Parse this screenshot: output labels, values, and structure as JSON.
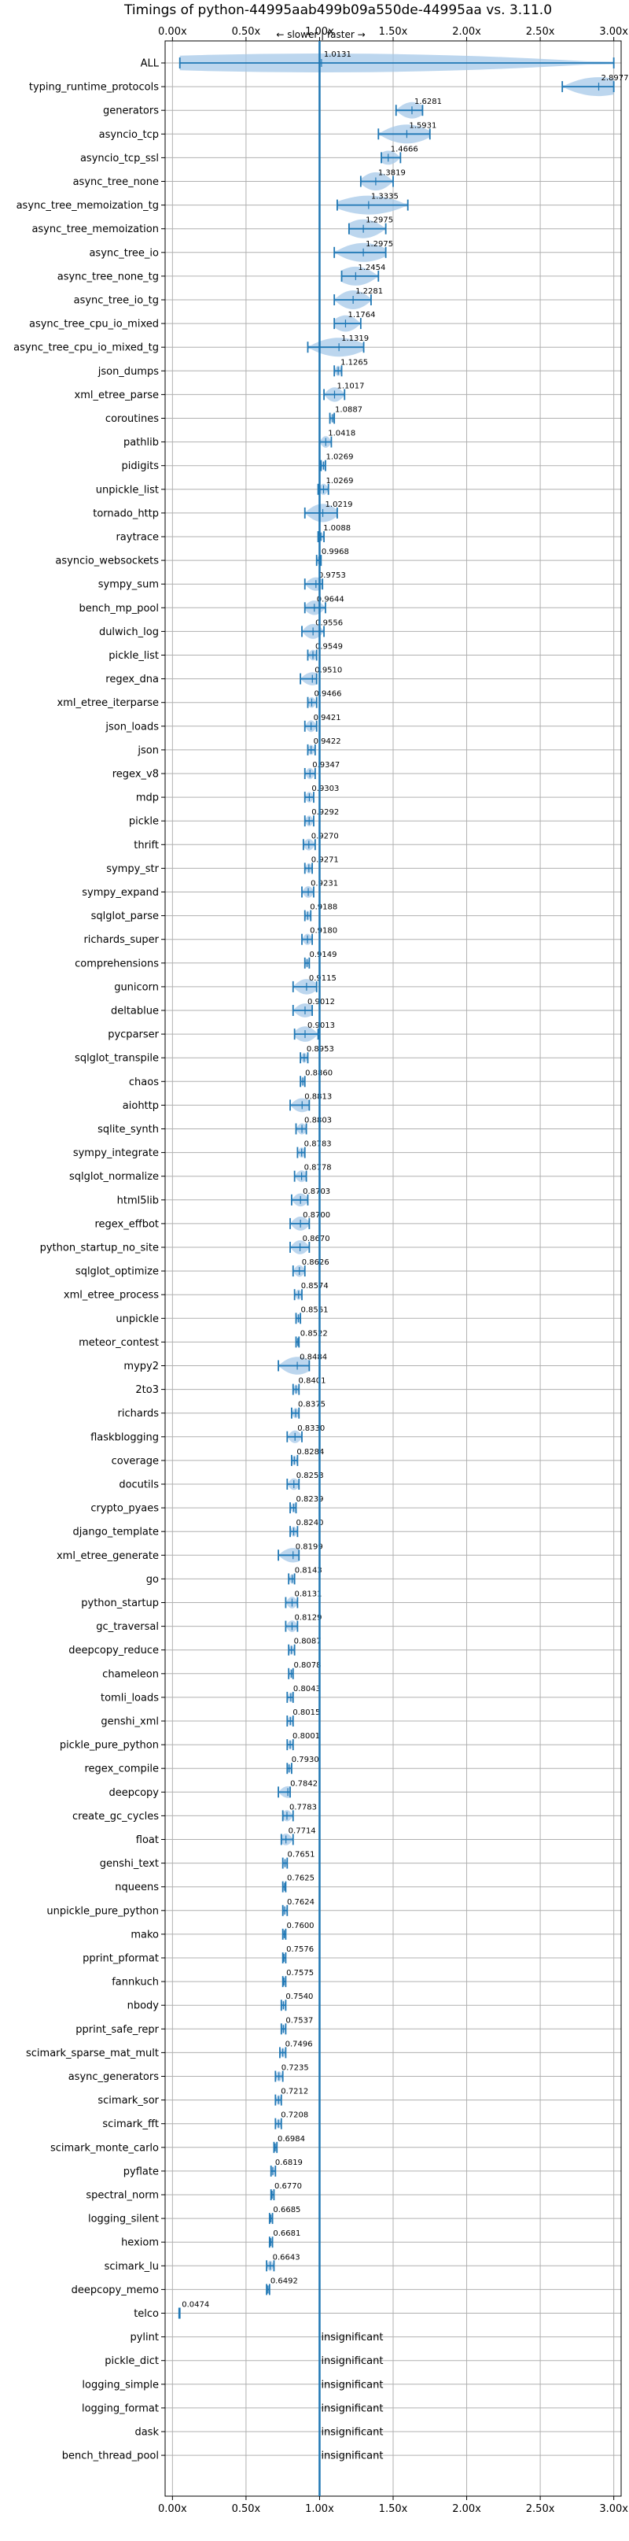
{
  "chart_data": {
    "type": "violin",
    "title": "Timings of python-44995aab499b09a550de-44995aa vs. 3.11.0",
    "direction_note": "← slower | faster →",
    "xlim": [
      -0.05,
      3.05
    ],
    "x_ticks": [
      0.0,
      0.5,
      1.0,
      1.5,
      2.0,
      2.5,
      3.0
    ],
    "x_tick_labels": [
      "0.00x",
      "0.50x",
      "1.00x",
      "1.50x",
      "2.00x",
      "2.50x",
      "3.00x"
    ],
    "reference_line": 1.0,
    "grid": true,
    "insignificant_label": "insignificant",
    "benchmarks": [
      {
        "name": "ALL",
        "value": 1.0131,
        "label": "1.0131",
        "lo": 0.05,
        "hi": 3.0,
        "significant": true
      },
      {
        "name": "typing_runtime_protocols",
        "value": 2.8977,
        "label": "2.8977",
        "lo": 2.65,
        "hi": 3.0,
        "significant": true
      },
      {
        "name": "generators",
        "value": 1.6281,
        "label": "1.6281",
        "lo": 1.52,
        "hi": 1.7,
        "significant": true
      },
      {
        "name": "asyncio_tcp",
        "value": 1.5931,
        "label": "1.5931",
        "lo": 1.4,
        "hi": 1.75,
        "significant": true
      },
      {
        "name": "asyncio_tcp_ssl",
        "value": 1.4666,
        "label": "1.4666",
        "lo": 1.42,
        "hi": 1.55,
        "significant": true
      },
      {
        "name": "async_tree_none",
        "value": 1.3819,
        "label": "1.3819",
        "lo": 1.28,
        "hi": 1.5,
        "significant": true
      },
      {
        "name": "async_tree_memoization_tg",
        "value": 1.3335,
        "label": "1.3335",
        "lo": 1.12,
        "hi": 1.6,
        "significant": true
      },
      {
        "name": "async_tree_memoization",
        "value": 1.2975,
        "label": "1.2975",
        "lo": 1.2,
        "hi": 1.45,
        "significant": true
      },
      {
        "name": "async_tree_io",
        "value": 1.2975,
        "label": "1.2975",
        "lo": 1.1,
        "hi": 1.45,
        "significant": true
      },
      {
        "name": "async_tree_none_tg",
        "value": 1.2454,
        "label": "1.2454",
        "lo": 1.15,
        "hi": 1.4,
        "significant": true
      },
      {
        "name": "async_tree_io_tg",
        "value": 1.2281,
        "label": "1.2281",
        "lo": 1.1,
        "hi": 1.35,
        "significant": true
      },
      {
        "name": "async_tree_cpu_io_mixed",
        "value": 1.1764,
        "label": "1.1764",
        "lo": 1.1,
        "hi": 1.28,
        "significant": true
      },
      {
        "name": "async_tree_cpu_io_mixed_tg",
        "value": 1.1319,
        "label": "1.1319",
        "lo": 0.92,
        "hi": 1.3,
        "significant": true
      },
      {
        "name": "json_dumps",
        "value": 1.1265,
        "label": "1.1265",
        "lo": 1.1,
        "hi": 1.15,
        "significant": true
      },
      {
        "name": "xml_etree_parse",
        "value": 1.1017,
        "label": "1.1017",
        "lo": 1.03,
        "hi": 1.17,
        "significant": true
      },
      {
        "name": "coroutines",
        "value": 1.0887,
        "label": "1.0887",
        "lo": 1.07,
        "hi": 1.1,
        "significant": true
      },
      {
        "name": "pathlib",
        "value": 1.0418,
        "label": "1.0418",
        "lo": 1.0,
        "hi": 1.08,
        "significant": true
      },
      {
        "name": "pidigits",
        "value": 1.0269,
        "label": "1.0269",
        "lo": 1.01,
        "hi": 1.04,
        "significant": true
      },
      {
        "name": "unpickle_list",
        "value": 1.0269,
        "label": "1.0269",
        "lo": 0.99,
        "hi": 1.06,
        "significant": true
      },
      {
        "name": "tornado_http",
        "value": 1.0219,
        "label": "1.0219",
        "lo": 0.9,
        "hi": 1.12,
        "significant": true
      },
      {
        "name": "raytrace",
        "value": 1.0088,
        "label": "1.0088",
        "lo": 0.99,
        "hi": 1.03,
        "significant": true
      },
      {
        "name": "asyncio_websockets",
        "value": 0.9968,
        "label": "0.9968",
        "lo": 0.98,
        "hi": 1.01,
        "significant": true
      },
      {
        "name": "sympy_sum",
        "value": 0.9753,
        "label": "0.9753",
        "lo": 0.9,
        "hi": 1.02,
        "significant": true
      },
      {
        "name": "bench_mp_pool",
        "value": 0.9644,
        "label": "0.9644",
        "lo": 0.9,
        "hi": 1.04,
        "significant": true
      },
      {
        "name": "dulwich_log",
        "value": 0.9556,
        "label": "0.9556",
        "lo": 0.88,
        "hi": 1.03,
        "significant": true
      },
      {
        "name": "pickle_list",
        "value": 0.9549,
        "label": "0.9549",
        "lo": 0.92,
        "hi": 0.98,
        "significant": true
      },
      {
        "name": "regex_dna",
        "value": 0.951,
        "label": "0.9510",
        "lo": 0.87,
        "hi": 0.98,
        "significant": true
      },
      {
        "name": "xml_etree_iterparse",
        "value": 0.9466,
        "label": "0.9466",
        "lo": 0.92,
        "hi": 0.98,
        "significant": true
      },
      {
        "name": "json_loads",
        "value": 0.9421,
        "label": "0.9421",
        "lo": 0.9,
        "hi": 0.98,
        "significant": true
      },
      {
        "name": "json",
        "value": 0.9422,
        "label": "0.9422",
        "lo": 0.92,
        "hi": 0.97,
        "significant": true
      },
      {
        "name": "regex_v8",
        "value": 0.9347,
        "label": "0.9347",
        "lo": 0.9,
        "hi": 0.97,
        "significant": true
      },
      {
        "name": "mdp",
        "value": 0.9303,
        "label": "0.9303",
        "lo": 0.9,
        "hi": 0.96,
        "significant": true
      },
      {
        "name": "pickle",
        "value": 0.9292,
        "label": "0.9292",
        "lo": 0.9,
        "hi": 0.96,
        "significant": true
      },
      {
        "name": "thrift",
        "value": 0.927,
        "label": "0.9270",
        "lo": 0.89,
        "hi": 0.97,
        "significant": true
      },
      {
        "name": "sympy_str",
        "value": 0.9271,
        "label": "0.9271",
        "lo": 0.9,
        "hi": 0.95,
        "significant": true
      },
      {
        "name": "sympy_expand",
        "value": 0.9231,
        "label": "0.9231",
        "lo": 0.88,
        "hi": 0.96,
        "significant": true
      },
      {
        "name": "sqlglot_parse",
        "value": 0.9188,
        "label": "0.9188",
        "lo": 0.9,
        "hi": 0.94,
        "significant": true
      },
      {
        "name": "richards_super",
        "value": 0.918,
        "label": "0.9180",
        "lo": 0.88,
        "hi": 0.95,
        "significant": true
      },
      {
        "name": "comprehensions",
        "value": 0.9149,
        "label": "0.9149",
        "lo": 0.9,
        "hi": 0.93,
        "significant": true
      },
      {
        "name": "gunicorn",
        "value": 0.9115,
        "label": "0.9115",
        "lo": 0.82,
        "hi": 0.98,
        "significant": true
      },
      {
        "name": "deltablue",
        "value": 0.9012,
        "label": "0.9012",
        "lo": 0.82,
        "hi": 0.95,
        "significant": true
      },
      {
        "name": "pycparser",
        "value": 0.9013,
        "label": "0.9013",
        "lo": 0.83,
        "hi": 0.99,
        "significant": true
      },
      {
        "name": "sqlglot_transpile",
        "value": 0.8953,
        "label": "0.8953",
        "lo": 0.87,
        "hi": 0.92,
        "significant": true
      },
      {
        "name": "chaos",
        "value": 0.886,
        "label": "0.8860",
        "lo": 0.87,
        "hi": 0.9,
        "significant": true
      },
      {
        "name": "aiohttp",
        "value": 0.8813,
        "label": "0.8813",
        "lo": 0.8,
        "hi": 0.93,
        "significant": true
      },
      {
        "name": "sqlite_synth",
        "value": 0.8803,
        "label": "0.8803",
        "lo": 0.84,
        "hi": 0.91,
        "significant": true
      },
      {
        "name": "sympy_integrate",
        "value": 0.8783,
        "label": "0.8783",
        "lo": 0.85,
        "hi": 0.9,
        "significant": true
      },
      {
        "name": "sqlglot_normalize",
        "value": 0.8778,
        "label": "0.8778",
        "lo": 0.83,
        "hi": 0.91,
        "significant": true
      },
      {
        "name": "html5lib",
        "value": 0.8703,
        "label": "0.8703",
        "lo": 0.81,
        "hi": 0.92,
        "significant": true
      },
      {
        "name": "regex_effbot",
        "value": 0.87,
        "label": "0.8700",
        "lo": 0.8,
        "hi": 0.93,
        "significant": true
      },
      {
        "name": "python_startup_no_site",
        "value": 0.867,
        "label": "0.8670",
        "lo": 0.8,
        "hi": 0.93,
        "significant": true
      },
      {
        "name": "sqlglot_optimize",
        "value": 0.8626,
        "label": "0.8626",
        "lo": 0.82,
        "hi": 0.9,
        "significant": true
      },
      {
        "name": "xml_etree_process",
        "value": 0.8574,
        "label": "0.8574",
        "lo": 0.83,
        "hi": 0.88,
        "significant": true
      },
      {
        "name": "unpickle",
        "value": 0.8561,
        "label": "0.8561",
        "lo": 0.84,
        "hi": 0.87,
        "significant": true
      },
      {
        "name": "meteor_contest",
        "value": 0.8522,
        "label": "0.8522",
        "lo": 0.84,
        "hi": 0.86,
        "significant": true
      },
      {
        "name": "mypy2",
        "value": 0.8484,
        "label": "0.8484",
        "lo": 0.72,
        "hi": 0.93,
        "significant": true
      },
      {
        "name": "2to3",
        "value": 0.8401,
        "label": "0.8401",
        "lo": 0.82,
        "hi": 0.86,
        "significant": true
      },
      {
        "name": "richards",
        "value": 0.8375,
        "label": "0.8375",
        "lo": 0.81,
        "hi": 0.86,
        "significant": true
      },
      {
        "name": "flaskblogging",
        "value": 0.833,
        "label": "0.8330",
        "lo": 0.78,
        "hi": 0.88,
        "significant": true
      },
      {
        "name": "coverage",
        "value": 0.8284,
        "label": "0.8284",
        "lo": 0.81,
        "hi": 0.85,
        "significant": true
      },
      {
        "name": "docutils",
        "value": 0.8253,
        "label": "0.8253",
        "lo": 0.78,
        "hi": 0.86,
        "significant": true
      },
      {
        "name": "crypto_pyaes",
        "value": 0.8239,
        "label": "0.8239",
        "lo": 0.8,
        "hi": 0.84,
        "significant": true
      },
      {
        "name": "django_template",
        "value": 0.824,
        "label": "0.8240",
        "lo": 0.8,
        "hi": 0.85,
        "significant": true
      },
      {
        "name": "xml_etree_generate",
        "value": 0.8199,
        "label": "0.8199",
        "lo": 0.72,
        "hi": 0.86,
        "significant": true
      },
      {
        "name": "go",
        "value": 0.8143,
        "label": "0.8143",
        "lo": 0.79,
        "hi": 0.83,
        "significant": true
      },
      {
        "name": "python_startup",
        "value": 0.8131,
        "label": "0.8131",
        "lo": 0.77,
        "hi": 0.85,
        "significant": true
      },
      {
        "name": "gc_traversal",
        "value": 0.8129,
        "label": "0.8129",
        "lo": 0.77,
        "hi": 0.85,
        "significant": true
      },
      {
        "name": "deepcopy_reduce",
        "value": 0.8087,
        "label": "0.8087",
        "lo": 0.79,
        "hi": 0.83,
        "significant": true
      },
      {
        "name": "chameleon",
        "value": 0.8078,
        "label": "0.8078",
        "lo": 0.79,
        "hi": 0.82,
        "significant": true
      },
      {
        "name": "tomli_loads",
        "value": 0.8043,
        "label": "0.8043",
        "lo": 0.78,
        "hi": 0.82,
        "significant": true
      },
      {
        "name": "genshi_xml",
        "value": 0.8015,
        "label": "0.8015",
        "lo": 0.78,
        "hi": 0.82,
        "significant": true
      },
      {
        "name": "pickle_pure_python",
        "value": 0.8001,
        "label": "0.8001",
        "lo": 0.78,
        "hi": 0.82,
        "significant": true
      },
      {
        "name": "regex_compile",
        "value": 0.793,
        "label": "0.7930",
        "lo": 0.78,
        "hi": 0.81,
        "significant": true
      },
      {
        "name": "deepcopy",
        "value": 0.7842,
        "label": "0.7842",
        "lo": 0.72,
        "hi": 0.8,
        "significant": true
      },
      {
        "name": "create_gc_cycles",
        "value": 0.7783,
        "label": "0.7783",
        "lo": 0.75,
        "hi": 0.82,
        "significant": true
      },
      {
        "name": "float",
        "value": 0.7714,
        "label": "0.7714",
        "lo": 0.74,
        "hi": 0.82,
        "significant": true
      },
      {
        "name": "genshi_text",
        "value": 0.7651,
        "label": "0.7651",
        "lo": 0.75,
        "hi": 0.78,
        "significant": true
      },
      {
        "name": "nqueens",
        "value": 0.7625,
        "label": "0.7625",
        "lo": 0.75,
        "hi": 0.77,
        "significant": true
      },
      {
        "name": "unpickle_pure_python",
        "value": 0.7624,
        "label": "0.7624",
        "lo": 0.75,
        "hi": 0.78,
        "significant": true
      },
      {
        "name": "mako",
        "value": 0.76,
        "label": "0.7600",
        "lo": 0.75,
        "hi": 0.77,
        "significant": true
      },
      {
        "name": "pprint_pformat",
        "value": 0.7576,
        "label": "0.7576",
        "lo": 0.75,
        "hi": 0.77,
        "significant": true
      },
      {
        "name": "fannkuch",
        "value": 0.7575,
        "label": "0.7575",
        "lo": 0.75,
        "hi": 0.77,
        "significant": true
      },
      {
        "name": "nbody",
        "value": 0.754,
        "label": "0.7540",
        "lo": 0.74,
        "hi": 0.77,
        "significant": true
      },
      {
        "name": "pprint_safe_repr",
        "value": 0.7537,
        "label": "0.7537",
        "lo": 0.74,
        "hi": 0.77,
        "significant": true
      },
      {
        "name": "scimark_sparse_mat_mult",
        "value": 0.7496,
        "label": "0.7496",
        "lo": 0.73,
        "hi": 0.77,
        "significant": true
      },
      {
        "name": "async_generators",
        "value": 0.7235,
        "label": "0.7235",
        "lo": 0.7,
        "hi": 0.75,
        "significant": true
      },
      {
        "name": "scimark_sor",
        "value": 0.7212,
        "label": "0.7212",
        "lo": 0.7,
        "hi": 0.74,
        "significant": true
      },
      {
        "name": "scimark_fft",
        "value": 0.7208,
        "label": "0.7208",
        "lo": 0.7,
        "hi": 0.74,
        "significant": true
      },
      {
        "name": "scimark_monte_carlo",
        "value": 0.6984,
        "label": "0.6984",
        "lo": 0.69,
        "hi": 0.71,
        "significant": true
      },
      {
        "name": "pyflate",
        "value": 0.6819,
        "label": "0.6819",
        "lo": 0.67,
        "hi": 0.7,
        "significant": true
      },
      {
        "name": "spectral_norm",
        "value": 0.677,
        "label": "0.6770",
        "lo": 0.67,
        "hi": 0.69,
        "significant": true
      },
      {
        "name": "logging_silent",
        "value": 0.6685,
        "label": "0.6685",
        "lo": 0.66,
        "hi": 0.68,
        "significant": true
      },
      {
        "name": "hexiom",
        "value": 0.6681,
        "label": "0.6681",
        "lo": 0.66,
        "hi": 0.68,
        "significant": true
      },
      {
        "name": "scimark_lu",
        "value": 0.6643,
        "label": "0.6643",
        "lo": 0.64,
        "hi": 0.69,
        "significant": true
      },
      {
        "name": "deepcopy_memo",
        "value": 0.6492,
        "label": "0.6492",
        "lo": 0.64,
        "hi": 0.66,
        "significant": true
      },
      {
        "name": "telco",
        "value": 0.0474,
        "label": "0.0474",
        "lo": 0.045,
        "hi": 0.05,
        "significant": true
      },
      {
        "name": "pylint",
        "significant": false
      },
      {
        "name": "pickle_dict",
        "significant": false
      },
      {
        "name": "logging_simple",
        "significant": false
      },
      {
        "name": "logging_format",
        "significant": false
      },
      {
        "name": "dask",
        "significant": false
      },
      {
        "name": "bench_thread_pool",
        "significant": false
      }
    ],
    "colors": {
      "violin": "#a6c8e8",
      "whisker": "#1f77b4",
      "reference": "#1f77b4",
      "median_highlight": "#d62728"
    }
  }
}
